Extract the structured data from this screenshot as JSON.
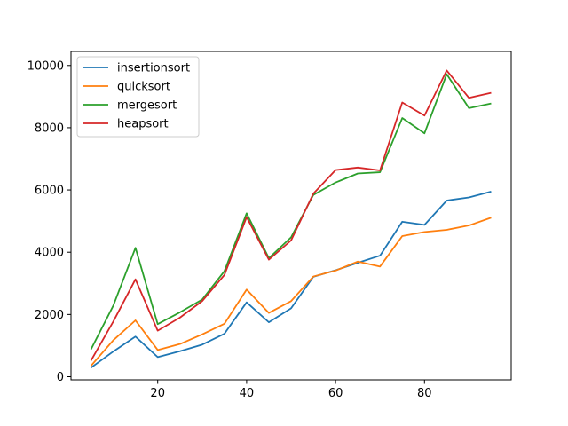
{
  "chart_data": {
    "type": "line",
    "title": "",
    "xlabel": "",
    "ylabel": "",
    "xlim": [
      0.5,
      99.5
    ],
    "ylim": [
      -100,
      10450
    ],
    "x_ticks": [
      20,
      40,
      60,
      80
    ],
    "y_ticks": [
      0,
      2000,
      4000,
      6000,
      8000,
      10000
    ],
    "grid": false,
    "legend_position": "upper left",
    "x": [
      5,
      10,
      15,
      20,
      25,
      30,
      35,
      40,
      45,
      50,
      55,
      60,
      65,
      70,
      75,
      80,
      85,
      90,
      95
    ],
    "series": [
      {
        "name": "insertionsort",
        "color": "#1f77b4",
        "values": [
          290,
          810,
          1290,
          630,
          820,
          1030,
          1380,
          2390,
          1750,
          2200,
          3210,
          3420,
          3660,
          3890,
          4980,
          4880,
          5660,
          5760,
          5950
        ]
      },
      {
        "name": "quicksort",
        "color": "#ff7f0e",
        "values": [
          350,
          1170,
          1810,
          860,
          1050,
          1360,
          1700,
          2800,
          2050,
          2430,
          3220,
          3410,
          3700,
          3540,
          4520,
          4650,
          4720,
          4860,
          5110
        ]
      },
      {
        "name": "mergesort",
        "color": "#2ca02c",
        "values": [
          880,
          2280,
          4140,
          1690,
          2070,
          2480,
          3390,
          5250,
          3810,
          4480,
          5840,
          6240,
          6530,
          6570,
          8310,
          7820,
          9720,
          8630,
          8780
        ]
      },
      {
        "name": "heapsort",
        "color": "#d62728",
        "values": [
          520,
          1770,
          3130,
          1480,
          1900,
          2430,
          3270,
          5130,
          3760,
          4380,
          5880,
          6640,
          6720,
          6630,
          8810,
          8390,
          9840,
          8960,
          9120
        ]
      }
    ]
  }
}
